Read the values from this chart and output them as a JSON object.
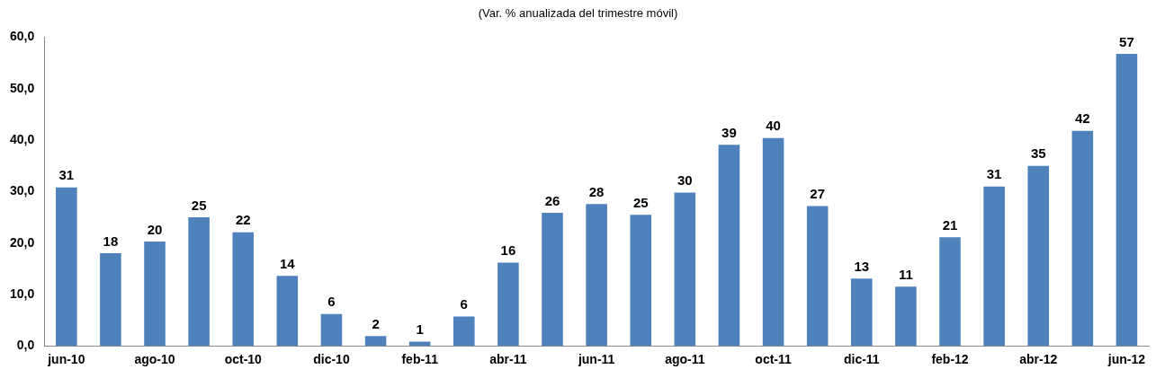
{
  "chart_data": {
    "type": "bar",
    "title": "(Var. % anualizada del trimestre móvil)",
    "categories": [
      "jun-10",
      null,
      "ago-10",
      null,
      "oct-10",
      null,
      "dic-10",
      null,
      "feb-11",
      null,
      "abr-11",
      null,
      "jun-11",
      null,
      "ago-11",
      null,
      "oct-11",
      null,
      "dic-11",
      null,
      "feb-12",
      null,
      "abr-12",
      null,
      "jun-12"
    ],
    "values": [
      30.8,
      18.0,
      20.3,
      25.0,
      22.1,
      13.6,
      6.2,
      1.9,
      0.8,
      5.7,
      16.2,
      25.9,
      27.6,
      25.5,
      29.8,
      39.1,
      40.4,
      27.2,
      13.1,
      11.5,
      21.1,
      31.0,
      35.0,
      41.8,
      56.8
    ],
    "value_labels": [
      "31",
      "18",
      "20",
      "25",
      "22",
      "14",
      "6",
      "2",
      "1",
      "6",
      "16",
      "26",
      "28",
      "25",
      "30",
      "39",
      "40",
      "27",
      "13",
      "11",
      "21",
      "31",
      "35",
      "42",
      "57"
    ],
    "color": "#4f81bd",
    "ylim": [
      0,
      60
    ],
    "yticks": [
      {
        "value": 0,
        "label": "0,0"
      },
      {
        "value": 10,
        "label": "10,0"
      },
      {
        "value": 20,
        "label": "20,0"
      },
      {
        "value": 30,
        "label": "30,0"
      },
      {
        "value": 40,
        "label": "40,0"
      },
      {
        "value": 50,
        "label": "50,0"
      },
      {
        "value": 60,
        "label": "60,0"
      }
    ],
    "grid": false,
    "legend": false
  }
}
